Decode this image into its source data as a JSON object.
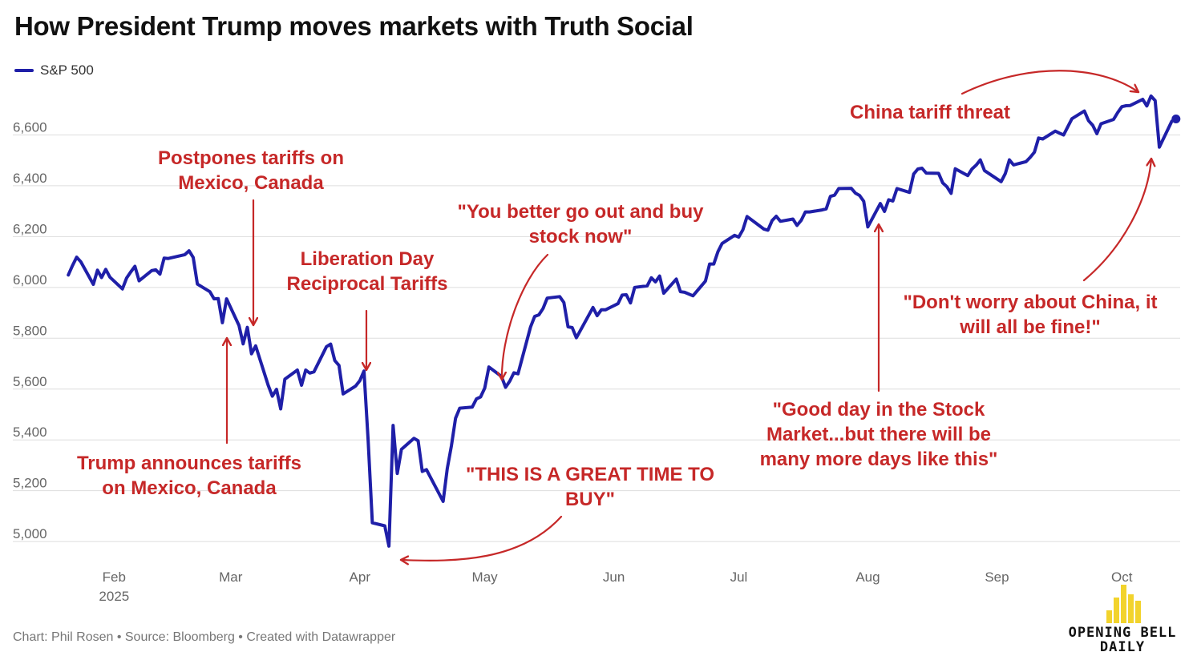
{
  "title": "How President Trump moves markets with Truth Social",
  "legend": {
    "label": "S&P 500",
    "color": "#1f1fa8"
  },
  "colors": {
    "line": "#1f1fa8",
    "annotation": "#c62828",
    "grid": "#dddddd",
    "tick": "#666666"
  },
  "chart_data": {
    "type": "line",
    "title": "How President Trump moves markets with Truth Social",
    "xlabel": "",
    "ylabel": "",
    "ylim": [
      4950,
      6800
    ],
    "xlim": [
      "2025-01-20",
      "2025-10-15"
    ],
    "grid": true,
    "legend_position": "top-left",
    "y_ticks": [
      5000,
      5200,
      5400,
      5600,
      5800,
      6000,
      6200,
      6400,
      6600
    ],
    "y_tick_labels": [
      "5,000",
      "5,200",
      "5,400",
      "5,600",
      "5,800",
      "6,000",
      "6,200",
      "6,400",
      "6,600"
    ],
    "x_ticks": [
      {
        "date": "2025-02-01",
        "label": "Feb",
        "sublabel": "2025"
      },
      {
        "date": "2025-03-01",
        "label": "Mar",
        "sublabel": ""
      },
      {
        "date": "2025-04-01",
        "label": "Apr",
        "sublabel": ""
      },
      {
        "date": "2025-05-01",
        "label": "May",
        "sublabel": ""
      },
      {
        "date": "2025-06-01",
        "label": "Jun",
        "sublabel": ""
      },
      {
        "date": "2025-07-01",
        "label": "Jul",
        "sublabel": ""
      },
      {
        "date": "2025-08-01",
        "label": "Aug",
        "sublabel": ""
      },
      {
        "date": "2025-09-01",
        "label": "Sep",
        "sublabel": ""
      },
      {
        "date": "2025-10-01",
        "label": "Oct",
        "sublabel": ""
      }
    ],
    "series": [
      {
        "name": "S&P 500",
        "points": [
          [
            "2025-01-21",
            6049
          ],
          [
            "2025-01-22",
            6086
          ],
          [
            "2025-01-23",
            6119
          ],
          [
            "2025-01-24",
            6101
          ],
          [
            "2025-01-27",
            6012
          ],
          [
            "2025-01-28",
            6068
          ],
          [
            "2025-01-29",
            6039
          ],
          [
            "2025-01-30",
            6071
          ],
          [
            "2025-01-31",
            6040
          ],
          [
            "2025-02-03",
            5994
          ],
          [
            "2025-02-04",
            6037
          ],
          [
            "2025-02-05",
            6061
          ],
          [
            "2025-02-06",
            6083
          ],
          [
            "2025-02-07",
            6026
          ],
          [
            "2025-02-10",
            6066
          ],
          [
            "2025-02-11",
            6069
          ],
          [
            "2025-02-12",
            6052
          ],
          [
            "2025-02-13",
            6115
          ],
          [
            "2025-02-14",
            6114
          ],
          [
            "2025-02-18",
            6129
          ],
          [
            "2025-02-19",
            6144
          ],
          [
            "2025-02-20",
            6118
          ],
          [
            "2025-02-21",
            6013
          ],
          [
            "2025-02-24",
            5983
          ],
          [
            "2025-02-25",
            5955
          ],
          [
            "2025-02-26",
            5956
          ],
          [
            "2025-02-27",
            5861
          ],
          [
            "2025-02-28",
            5955
          ],
          [
            "2025-03-03",
            5850
          ],
          [
            "2025-03-04",
            5778
          ],
          [
            "2025-03-05",
            5843
          ],
          [
            "2025-03-06",
            5739
          ],
          [
            "2025-03-07",
            5770
          ],
          [
            "2025-03-10",
            5615
          ],
          [
            "2025-03-11",
            5572
          ],
          [
            "2025-03-12",
            5599
          ],
          [
            "2025-03-13",
            5522
          ],
          [
            "2025-03-14",
            5639
          ],
          [
            "2025-03-17",
            5675
          ],
          [
            "2025-03-18",
            5615
          ],
          [
            "2025-03-19",
            5675
          ],
          [
            "2025-03-20",
            5663
          ],
          [
            "2025-03-21",
            5668
          ],
          [
            "2025-03-24",
            5767
          ],
          [
            "2025-03-25",
            5777
          ],
          [
            "2025-03-26",
            5712
          ],
          [
            "2025-03-27",
            5693
          ],
          [
            "2025-03-28",
            5581
          ],
          [
            "2025-03-31",
            5612
          ],
          [
            "2025-04-01",
            5633
          ],
          [
            "2025-04-02",
            5671
          ],
          [
            "2025-04-03",
            5397
          ],
          [
            "2025-04-04",
            5074
          ],
          [
            "2025-04-07",
            5062
          ],
          [
            "2025-04-08",
            4982
          ],
          [
            "2025-04-09",
            5457
          ],
          [
            "2025-04-10",
            5268
          ],
          [
            "2025-04-11",
            5363
          ],
          [
            "2025-04-14",
            5406
          ],
          [
            "2025-04-15",
            5397
          ],
          [
            "2025-04-16",
            5276
          ],
          [
            "2025-04-17",
            5283
          ],
          [
            "2025-04-21",
            5158
          ],
          [
            "2025-04-22",
            5288
          ],
          [
            "2025-04-23",
            5376
          ],
          [
            "2025-04-24",
            5485
          ],
          [
            "2025-04-25",
            5525
          ],
          [
            "2025-04-28",
            5529
          ],
          [
            "2025-04-29",
            5561
          ],
          [
            "2025-04-30",
            5569
          ],
          [
            "2025-05-01",
            5604
          ],
          [
            "2025-05-02",
            5687
          ],
          [
            "2025-05-05",
            5650
          ],
          [
            "2025-05-06",
            5607
          ],
          [
            "2025-05-07",
            5631
          ],
          [
            "2025-05-08",
            5664
          ],
          [
            "2025-05-09",
            5660
          ],
          [
            "2025-05-12",
            5844
          ],
          [
            "2025-05-13",
            5886
          ],
          [
            "2025-05-14",
            5892
          ],
          [
            "2025-05-15",
            5917
          ],
          [
            "2025-05-16",
            5958
          ],
          [
            "2025-05-19",
            5964
          ],
          [
            "2025-05-20",
            5941
          ],
          [
            "2025-05-21",
            5845
          ],
          [
            "2025-05-22",
            5842
          ],
          [
            "2025-05-23",
            5802
          ],
          [
            "2025-05-27",
            5921
          ],
          [
            "2025-05-28",
            5889
          ],
          [
            "2025-05-29",
            5912
          ],
          [
            "2025-05-30",
            5912
          ],
          [
            "2025-06-02",
            5936
          ],
          [
            "2025-06-03",
            5970
          ],
          [
            "2025-06-04",
            5971
          ],
          [
            "2025-06-05",
            5939
          ],
          [
            "2025-06-06",
            6000
          ],
          [
            "2025-06-09",
            6006
          ],
          [
            "2025-06-10",
            6038
          ],
          [
            "2025-06-11",
            6022
          ],
          [
            "2025-06-12",
            6045
          ],
          [
            "2025-06-13",
            5977
          ],
          [
            "2025-06-16",
            6033
          ],
          [
            "2025-06-17",
            5983
          ],
          [
            "2025-06-18",
            5981
          ],
          [
            "2025-06-20",
            5967
          ],
          [
            "2025-06-23",
            6025
          ],
          [
            "2025-06-24",
            6092
          ],
          [
            "2025-06-25",
            6092
          ],
          [
            "2025-06-26",
            6141
          ],
          [
            "2025-06-27",
            6173
          ],
          [
            "2025-06-30",
            6205
          ],
          [
            "2025-07-01",
            6198
          ],
          [
            "2025-07-02",
            6227
          ],
          [
            "2025-07-03",
            6279
          ],
          [
            "2025-07-07",
            6230
          ],
          [
            "2025-07-08",
            6225
          ],
          [
            "2025-07-09",
            6263
          ],
          [
            "2025-07-10",
            6280
          ],
          [
            "2025-07-11",
            6260
          ],
          [
            "2025-07-14",
            6269
          ],
          [
            "2025-07-15",
            6244
          ],
          [
            "2025-07-16",
            6264
          ],
          [
            "2025-07-17",
            6297
          ],
          [
            "2025-07-18",
            6297
          ],
          [
            "2025-07-21",
            6305
          ],
          [
            "2025-07-22",
            6309
          ],
          [
            "2025-07-23",
            6358
          ],
          [
            "2025-07-24",
            6363
          ],
          [
            "2025-07-25",
            6389
          ],
          [
            "2025-07-28",
            6390
          ],
          [
            "2025-07-29",
            6371
          ],
          [
            "2025-07-30",
            6362
          ],
          [
            "2025-07-31",
            6339
          ],
          [
            "2025-08-01",
            6238
          ],
          [
            "2025-08-04",
            6330
          ],
          [
            "2025-08-05",
            6299
          ],
          [
            "2025-08-06",
            6345
          ],
          [
            "2025-08-07",
            6340
          ],
          [
            "2025-08-08",
            6389
          ],
          [
            "2025-08-11",
            6374
          ],
          [
            "2025-08-12",
            6446
          ],
          [
            "2025-08-13",
            6466
          ],
          [
            "2025-08-14",
            6469
          ],
          [
            "2025-08-15",
            6450
          ],
          [
            "2025-08-18",
            6449
          ],
          [
            "2025-08-19",
            6411
          ],
          [
            "2025-08-20",
            6396
          ],
          [
            "2025-08-21",
            6370
          ],
          [
            "2025-08-22",
            6467
          ],
          [
            "2025-08-25",
            6440
          ],
          [
            "2025-08-26",
            6466
          ],
          [
            "2025-08-27",
            6481
          ],
          [
            "2025-08-28",
            6502
          ],
          [
            "2025-08-29",
            6460
          ],
          [
            "2025-09-02",
            6416
          ],
          [
            "2025-09-03",
            6448
          ],
          [
            "2025-09-04",
            6502
          ],
          [
            "2025-09-05",
            6482
          ],
          [
            "2025-09-08",
            6495
          ],
          [
            "2025-09-09",
            6512
          ],
          [
            "2025-09-10",
            6532
          ],
          [
            "2025-09-11",
            6588
          ],
          [
            "2025-09-12",
            6584
          ],
          [
            "2025-09-15",
            6615
          ],
          [
            "2025-09-16",
            6607
          ],
          [
            "2025-09-17",
            6600
          ],
          [
            "2025-09-18",
            6632
          ],
          [
            "2025-09-19",
            6664
          ],
          [
            "2025-09-22",
            6694
          ],
          [
            "2025-09-23",
            6656
          ],
          [
            "2025-09-24",
            6638
          ],
          [
            "2025-09-25",
            6605
          ],
          [
            "2025-09-26",
            6644
          ],
          [
            "2025-09-29",
            6661
          ],
          [
            "2025-09-30",
            6688
          ],
          [
            "2025-10-01",
            6711
          ],
          [
            "2025-10-02",
            6715
          ],
          [
            "2025-10-03",
            6716
          ],
          [
            "2025-10-06",
            6740
          ],
          [
            "2025-10-07",
            6714
          ],
          [
            "2025-10-08",
            6753
          ],
          [
            "2025-10-09",
            6735
          ],
          [
            "2025-10-10",
            6552
          ],
          [
            "2025-10-13",
            6654
          ],
          [
            "2025-10-14",
            6663
          ]
        ]
      }
    ],
    "annotations": [
      {
        "lines": [
          "Postpones tariffs on",
          "Mexico, Canada"
        ],
        "date": "2025-03-04"
      },
      {
        "lines": [
          "Trump announces tariffs",
          "on Mexico, Canada"
        ],
        "date": "2025-02-27"
      },
      {
        "lines": [
          "Liberation Day",
          "Reciprocal Tariffs"
        ],
        "date": "2025-04-02"
      },
      {
        "lines": [
          "\"THIS IS A GREAT TIME TO",
          "BUY\""
        ],
        "date": "2025-04-09"
      },
      {
        "lines": [
          "\"You better go out and buy",
          "stock now\""
        ],
        "date": "2025-05-05"
      },
      {
        "lines": [
          "\"Good day in the Stock",
          "Market...but there will be",
          "many more days like this\""
        ],
        "date": "2025-08-05"
      },
      {
        "lines": [
          "China tariff threat"
        ],
        "date": "2025-10-10"
      },
      {
        "lines": [
          "\"Don't worry about China, it",
          "will all be fine!\""
        ],
        "date": "2025-10-10"
      }
    ]
  },
  "footer": "Chart: Phil Rosen • Source: Bloomberg • Created with Datawrapper",
  "logo": {
    "line1": "OPENING BELL",
    "line2": "DAILY",
    "bar_color": "#f2d32c"
  }
}
